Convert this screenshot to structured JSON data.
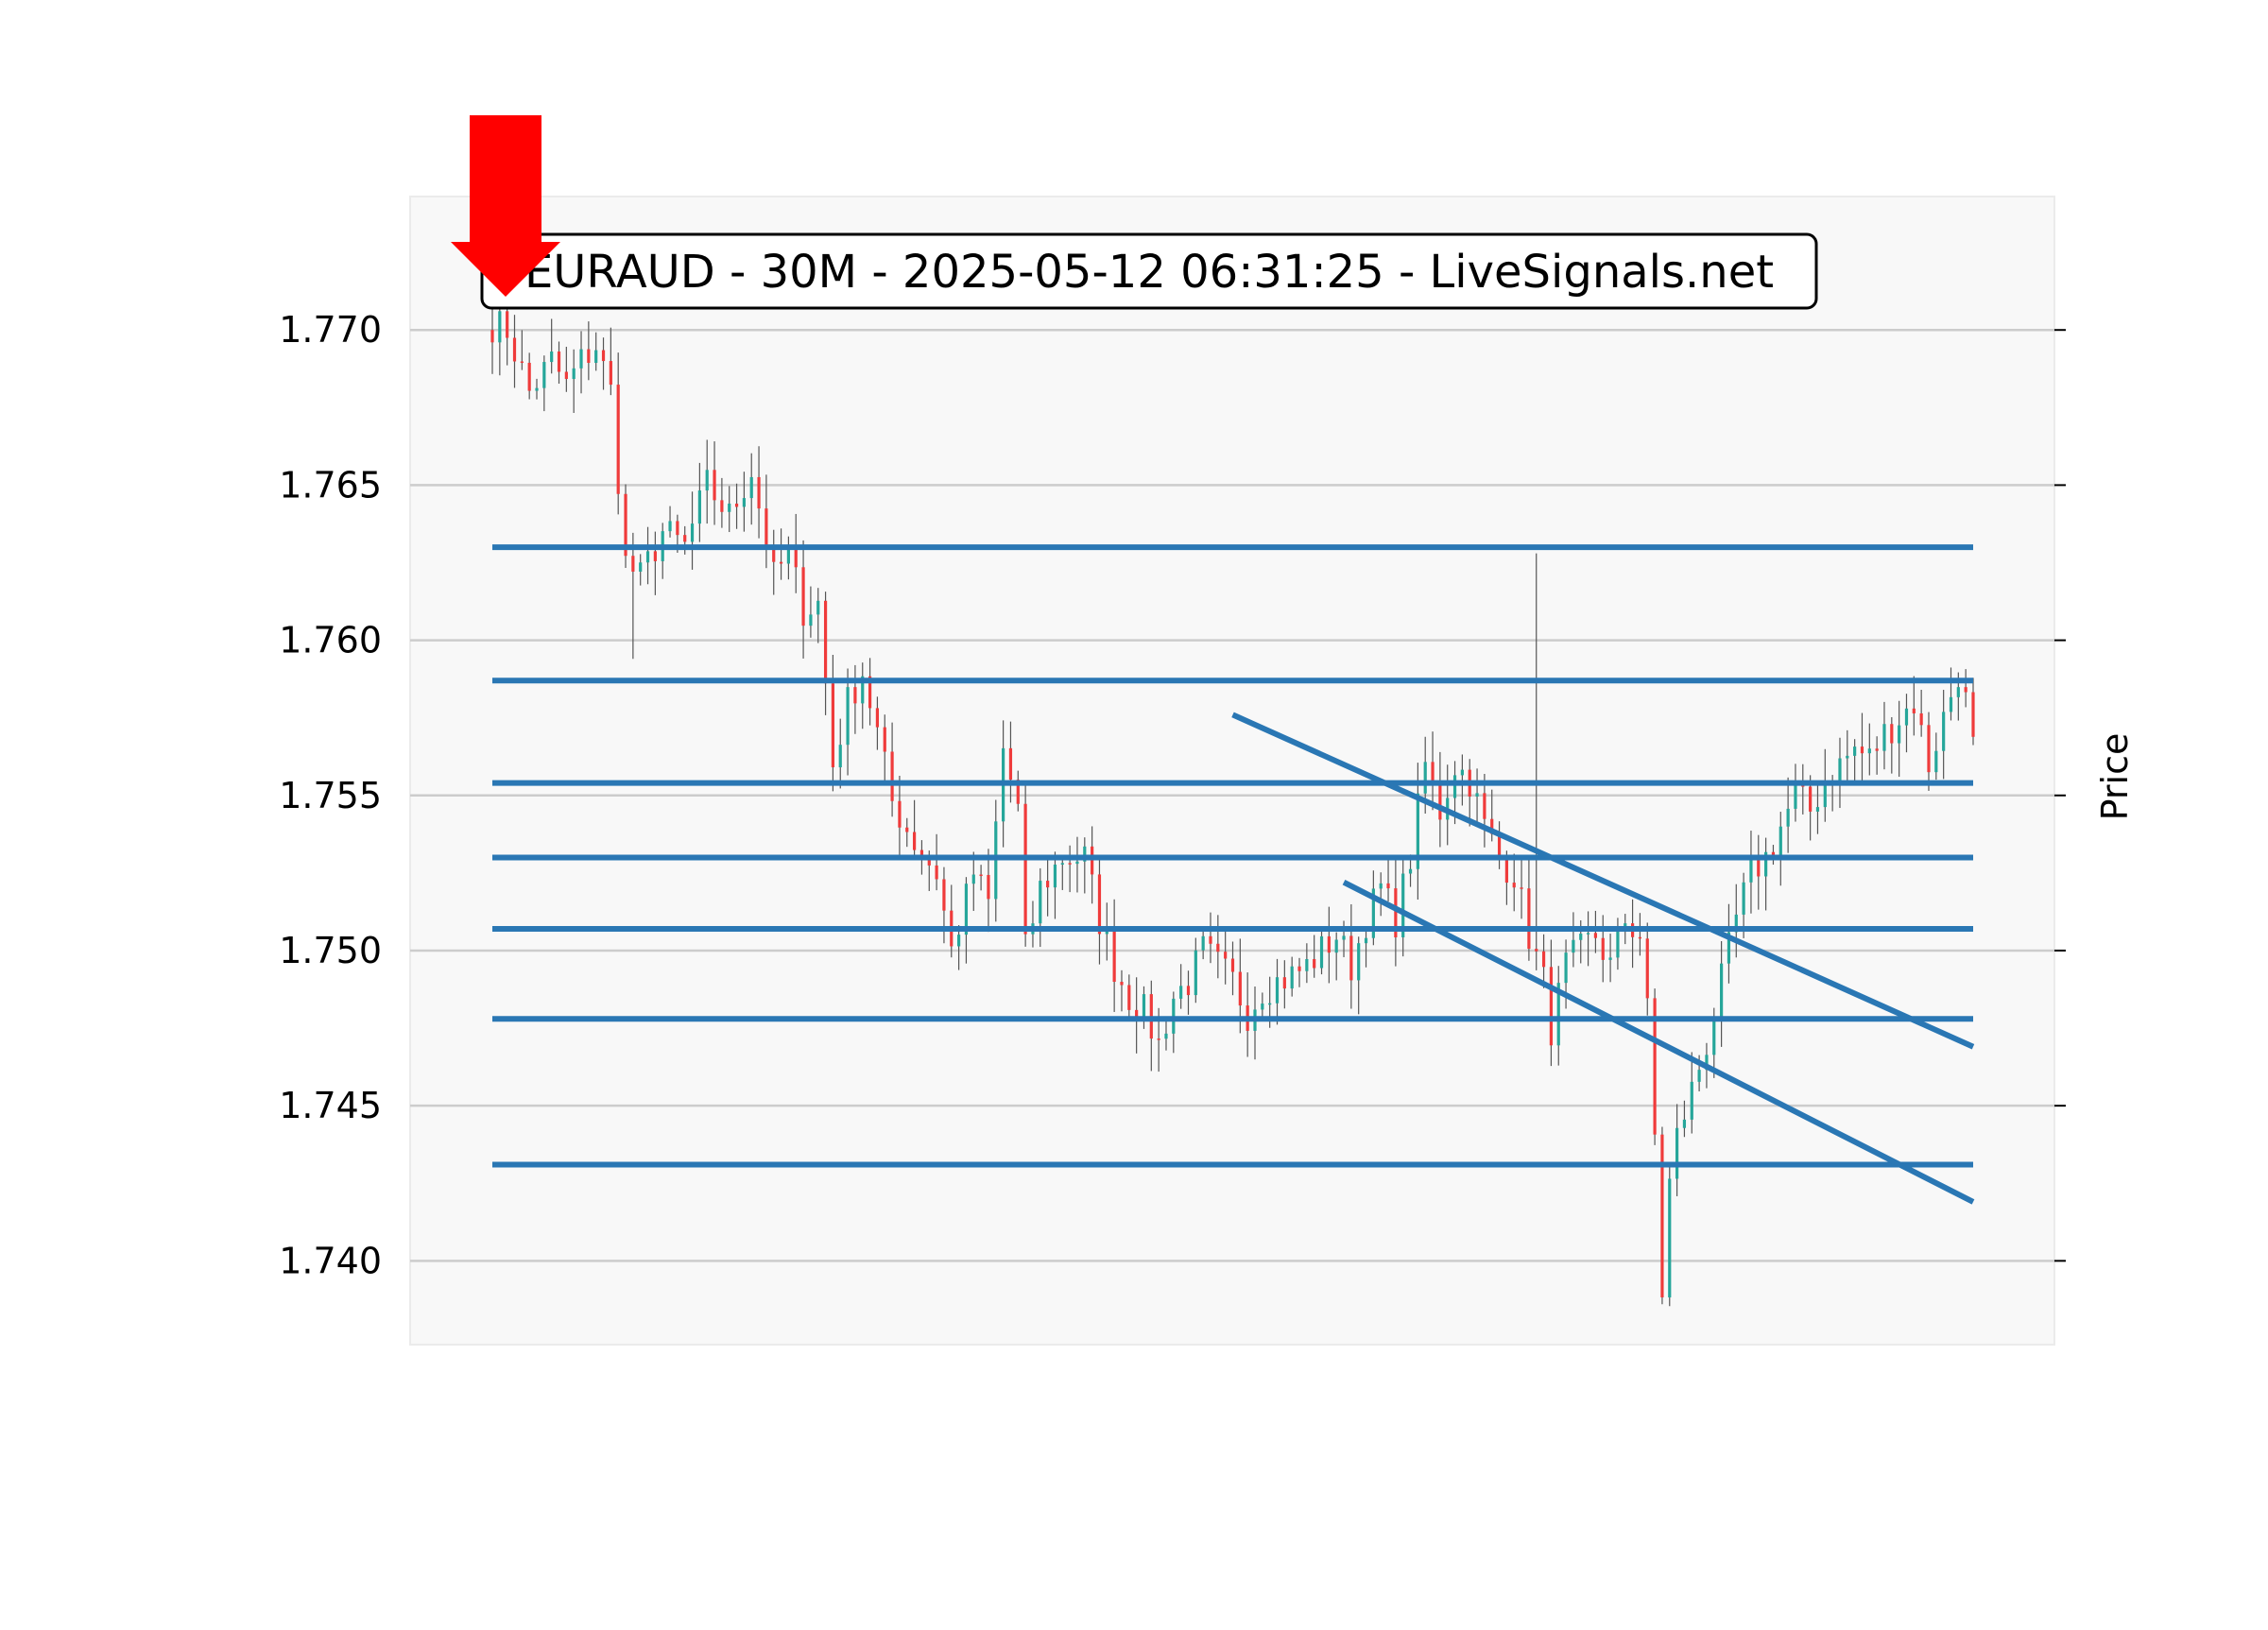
{
  "chart_data": {
    "type": "candlestick",
    "title": "EURAUD - 30M - 2025-05-12 06:31:25 - LiveSignals.net",
    "ylabel": "Price",
    "ylim": [
      1.7373,
      1.7743
    ],
    "y_ticks": [
      1.74,
      1.745,
      1.75,
      1.755,
      1.76,
      1.765,
      1.77
    ],
    "y_tick_labels": [
      "1.740",
      "1.745",
      "1.750",
      "1.755",
      "1.760",
      "1.765",
      "1.770"
    ],
    "grid": "horizontal",
    "up_color": "#26a69a",
    "down_color": "#ef3b3b",
    "level_color": "#2a77b4",
    "signal": {
      "direction": "sell",
      "icon": "down-arrow-icon",
      "color": "#ff0000"
    },
    "candle_count": 201,
    "anchors": [
      [
        0,
        1.7702
      ],
      [
        2,
        1.77
      ],
      [
        5,
        1.768
      ],
      [
        8,
        1.769
      ],
      [
        10,
        1.7682
      ],
      [
        12,
        1.769
      ],
      [
        14,
        1.7695
      ],
      [
        16,
        1.768
      ],
      [
        18,
        1.7625
      ],
      [
        20,
        1.762
      ],
      [
        23,
        1.7635
      ],
      [
        26,
        1.763
      ],
      [
        29,
        1.765
      ],
      [
        32,
        1.764
      ],
      [
        35,
        1.7655
      ],
      [
        38,
        1.762
      ],
      [
        40,
        1.7628
      ],
      [
        42,
        1.761
      ],
      [
        44,
        1.7612
      ],
      [
        46,
        1.756
      ],
      [
        48,
        1.758
      ],
      [
        50,
        1.759
      ],
      [
        52,
        1.757
      ],
      [
        54,
        1.7548
      ],
      [
        57,
        1.7535
      ],
      [
        60,
        1.7525
      ],
      [
        62,
        1.75
      ],
      [
        65,
        1.7525
      ],
      [
        67,
        1.7515
      ],
      [
        69,
        1.7565
      ],
      [
        71,
        1.7545
      ],
      [
        72,
        1.75
      ],
      [
        74,
        1.752
      ],
      [
        77,
        1.753
      ],
      [
        80,
        1.753
      ],
      [
        82,
        1.751
      ],
      [
        84,
        1.7495
      ],
      [
        86,
        1.7485
      ],
      [
        88,
        1.748
      ],
      [
        90,
        1.747
      ],
      [
        92,
        1.7485
      ],
      [
        94,
        1.749
      ],
      [
        96,
        1.75
      ],
      [
        98,
        1.7495
      ],
      [
        100,
        1.749
      ],
      [
        102,
        1.748
      ],
      [
        104,
        1.7488
      ],
      [
        106,
        1.749
      ],
      [
        108,
        1.7492
      ],
      [
        110,
        1.7495
      ],
      [
        112,
        1.75
      ],
      [
        114,
        1.7505
      ],
      [
        116,
        1.7495
      ],
      [
        118,
        1.751
      ],
      [
        120,
        1.752
      ],
      [
        122,
        1.751
      ],
      [
        124,
        1.753
      ],
      [
        126,
        1.756
      ],
      [
        128,
        1.7545
      ],
      [
        130,
        1.756
      ],
      [
        132,
        1.7555
      ],
      [
        134,
        1.754
      ],
      [
        136,
        1.753
      ],
      [
        138,
        1.7525
      ],
      [
        140,
        1.7505
      ],
      [
        142,
        1.749
      ],
      [
        143,
        1.7475
      ],
      [
        145,
        1.7495
      ],
      [
        147,
        1.75
      ],
      [
        149,
        1.7505
      ],
      [
        151,
        1.7495
      ],
      [
        153,
        1.751
      ],
      [
        155,
        1.7505
      ],
      [
        156,
        1.748
      ],
      [
        157,
        1.744
      ],
      [
        158,
        1.739
      ],
      [
        159,
        1.7425
      ],
      [
        160,
        1.744
      ],
      [
        162,
        1.7455
      ],
      [
        164,
        1.747
      ],
      [
        166,
        1.749
      ],
      [
        168,
        1.751
      ],
      [
        170,
        1.7525
      ],
      [
        172,
        1.753
      ],
      [
        174,
        1.754
      ],
      [
        176,
        1.755
      ],
      [
        178,
        1.7545
      ],
      [
        180,
        1.7555
      ],
      [
        182,
        1.756
      ],
      [
        184,
        1.7565
      ],
      [
        186,
        1.7562
      ],
      [
        188,
        1.757
      ],
      [
        190,
        1.7575
      ],
      [
        192,
        1.758
      ],
      [
        194,
        1.756
      ],
      [
        196,
        1.7575
      ],
      [
        198,
        1.759
      ],
      [
        199,
        1.758
      ],
      [
        200,
        1.7565
      ]
    ],
    "levels": [
      1.763,
      1.7587,
      1.7554,
      1.753,
      1.7507,
      1.7478,
      1.7431
    ],
    "trend_lines": [
      {
        "x0": 100,
        "y0": 1.7576,
        "x1": 200,
        "y1": 1.7469
      },
      {
        "x0": 115,
        "y0": 1.7522,
        "x1": 200,
        "y1": 1.7419
      }
    ]
  }
}
